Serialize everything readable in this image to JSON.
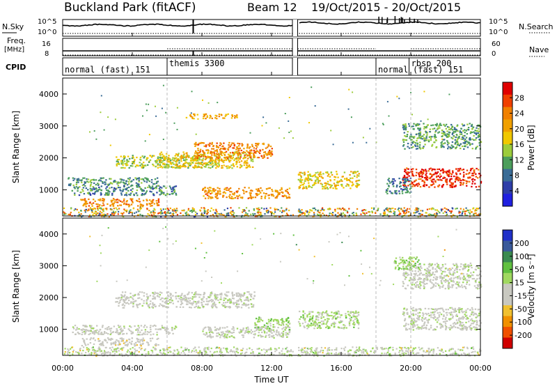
{
  "header": {
    "station": "Buckland Park (fitACF)",
    "beam": "Beam 12",
    "dates": "19/Oct/2015 - 20/Oct/2015"
  },
  "left_labels": {
    "nsky": "N.Sky",
    "freq": "Freq.",
    "freq_unit": "[MHz]",
    "cpid": "CPID"
  },
  "right_labels": {
    "nsearch": "N.Search",
    "nave": "Nave"
  },
  "noise_axis": {
    "top": "10^5",
    "bottom": "10^0"
  },
  "freq_axis": {
    "top": "16",
    "bottom": "8"
  },
  "nave_axis": {
    "top": "60",
    "bottom": "0"
  },
  "cpid_labels": [
    {
      "text": "normal (fast) 151",
      "start_h": 0.0
    },
    {
      "text": "themis 3300",
      "start_h": 6.0
    },
    {
      "text": "normal",
      "start_h": 18.0
    },
    {
      "text": "rbsp 200",
      "start_h": 19.9
    },
    {
      "text": "(fast) 151",
      "start_h": 20.0
    }
  ],
  "x_axis": {
    "label": "Time UT",
    "ticks": [
      "00:00",
      "04:00",
      "08:00",
      "12:00",
      "16:00",
      "20:00",
      "00:00"
    ]
  },
  "y_axis": {
    "label": "Slant Range [km]",
    "ticks": [
      "1000",
      "2000",
      "3000",
      "4000"
    ]
  },
  "colorbars": {
    "power": {
      "label": "Power [dB]",
      "ticks": [
        "28",
        "24",
        "20",
        "16",
        "12",
        "8",
        "4"
      ],
      "colors": [
        "#e00000",
        "#f04000",
        "#f08000",
        "#f0a000",
        "#f0c800",
        "#9ccc3c",
        "#4c9e5c",
        "#3a6c96",
        "#2e3ea8",
        "#2020e0"
      ]
    },
    "velocity": {
      "label": "Velocity [m s⁻¹]",
      "ticks": [
        "200",
        "100",
        "50",
        "15",
        "-15",
        "-50",
        "-100",
        "-200"
      ],
      "colors": [
        "#2030c8",
        "#3a5a9a",
        "#3a8a50",
        "#60c040",
        "#a0d860",
        "#c8c8c0",
        "#c8c8c0",
        "#f0c030",
        "#f09000",
        "#f05000",
        "#d00000"
      ]
    }
  },
  "chart_data": {
    "type": "heatmap",
    "panels": [
      {
        "name": "Power",
        "unit": "dB",
        "range": [
          0,
          30
        ],
        "structures": [
          {
            "t": [
              0.5,
              6.5
            ],
            "r": [
              850,
              1150
            ],
            "v": 9
          },
          {
            "t": [
              0.2,
              5.5
            ],
            "r": [
              1150,
              1400
            ],
            "v": 10
          },
          {
            "t": [
              1.0,
              5.5
            ],
            "r": [
              500,
              750
            ],
            "v": 22
          },
          {
            "t": [
              3.0,
              9.0
            ],
            "r": [
              1700,
              2100
            ],
            "v": 14
          },
          {
            "t": [
              5.5,
              11.0
            ],
            "r": [
              1700,
              2200
            ],
            "v": 17
          },
          {
            "t": [
              7.5,
              12.0
            ],
            "r": [
              2000,
              2500
            ],
            "v": 22
          },
          {
            "t": [
              7.0,
              10.0
            ],
            "r": [
              3250,
              3400
            ],
            "v": 19
          },
          {
            "t": [
              8.0,
              13.0
            ],
            "r": [
              750,
              1100
            ],
            "v": 21
          },
          {
            "t": [
              13.5,
              17.0
            ],
            "r": [
              1050,
              1600
            ],
            "v": 16
          },
          {
            "t": [
              19.5,
              24.0
            ],
            "r": [
              2300,
              3100
            ],
            "v": 11
          },
          {
            "t": [
              19.5,
              24.0
            ],
            "r": [
              1100,
              1700
            ],
            "v": 27
          },
          {
            "t": [
              18.5,
              20.0
            ],
            "r": [
              900,
              1400
            ],
            "v": 8
          }
        ]
      },
      {
        "name": "Velocity",
        "unit": "m s-1",
        "range": [
          -200,
          200
        ],
        "structures": [
          {
            "t": [
              0.5,
              6.5
            ],
            "r": [
              850,
              1150
            ],
            "v": 0
          },
          {
            "t": [
              1.0,
              5.5
            ],
            "r": [
              500,
              750
            ],
            "v": -30
          },
          {
            "t": [
              3.0,
              11.0
            ],
            "r": [
              1700,
              2200
            ],
            "v": 0
          },
          {
            "t": [
              8.0,
              13.0
            ],
            "r": [
              750,
              1100
            ],
            "v": 0
          },
          {
            "t": [
              11.0,
              13.0
            ],
            "r": [
              1000,
              1400
            ],
            "v": 40
          },
          {
            "t": [
              13.5,
              17.0
            ],
            "r": [
              1050,
              1600
            ],
            "v": 30
          },
          {
            "t": [
              19.5,
              24.0
            ],
            "r": [
              1000,
              1700
            ],
            "v": 0
          },
          {
            "t": [
              19.5,
              24.0
            ],
            "r": [
              2300,
              3100
            ],
            "v": 0
          },
          {
            "t": [
              19.0,
              20.5
            ],
            "r": [
              2900,
              3300
            ],
            "v": 45
          }
        ]
      }
    ],
    "x_range_hours": [
      0,
      24
    ],
    "y_range_km": [
      180,
      4500
    ],
    "data_gap_hours": [
      13.2,
      13.5
    ]
  }
}
